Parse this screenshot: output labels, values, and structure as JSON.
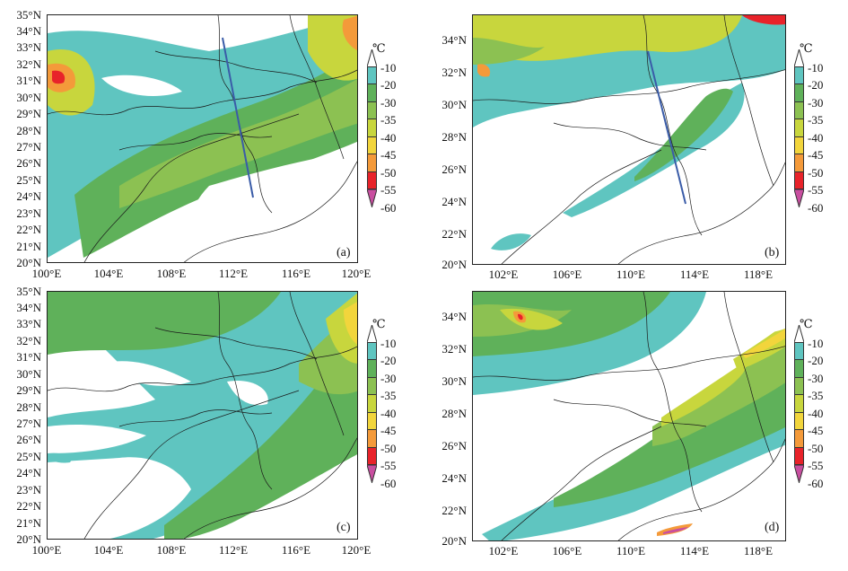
{
  "colorbar": {
    "unit": "℃",
    "labels": [
      "-10",
      "-20",
      "-30",
      "-35",
      "-40",
      "-45",
      "-50",
      "-55",
      "-60"
    ],
    "colors": [
      "#ffffff",
      "#5fc5c0",
      "#5fb15a",
      "#8cc152",
      "#c8d63d",
      "#f2d53c",
      "#f49a3a",
      "#e8232a",
      "#c94ea0"
    ]
  },
  "panels": [
    {
      "label": "(a)",
      "ylabels": [
        "35°N",
        "34°N",
        "33°N",
        "32°N",
        "31°N",
        "30°N",
        "29°N",
        "28°N",
        "27°N",
        "26°N",
        "25°N",
        "24°N",
        "23°N",
        "22°N",
        "21°N",
        "20°N"
      ],
      "xlabels": [
        "100°E",
        "104°E",
        "108°E",
        "112°E",
        "116°E",
        "120°E"
      ],
      "has_cross_section": true
    },
    {
      "label": "(b)",
      "ylabels": [
        "34°N",
        "32°N",
        "30°N",
        "28°N",
        "26°N",
        "24°N",
        "22°N",
        "20°N"
      ],
      "xlabels": [
        "102°E",
        "106°E",
        "110°E",
        "114°E",
        "118°E"
      ],
      "has_cross_section": true
    },
    {
      "label": "(c)",
      "ylabels": [
        "35°N",
        "34°N",
        "33°N",
        "32°N",
        "31°N",
        "30°N",
        "29°N",
        "28°N",
        "27°N",
        "26°N",
        "25°N",
        "24°N",
        "23°N",
        "22°N",
        "21°N",
        "20°N"
      ],
      "xlabels": [
        "100°E",
        "104°E",
        "108°E",
        "112°E",
        "116°E",
        "120°E"
      ],
      "has_cross_section": false
    },
    {
      "label": "(d)",
      "ylabels": [
        "34°N",
        "32°N",
        "30°N",
        "28°N",
        "26°N",
        "24°N",
        "22°N",
        "20°N"
      ],
      "xlabels": [
        "102°E",
        "106°E",
        "110°E",
        "114°E",
        "118°E"
      ],
      "has_cross_section": false
    }
  ]
}
